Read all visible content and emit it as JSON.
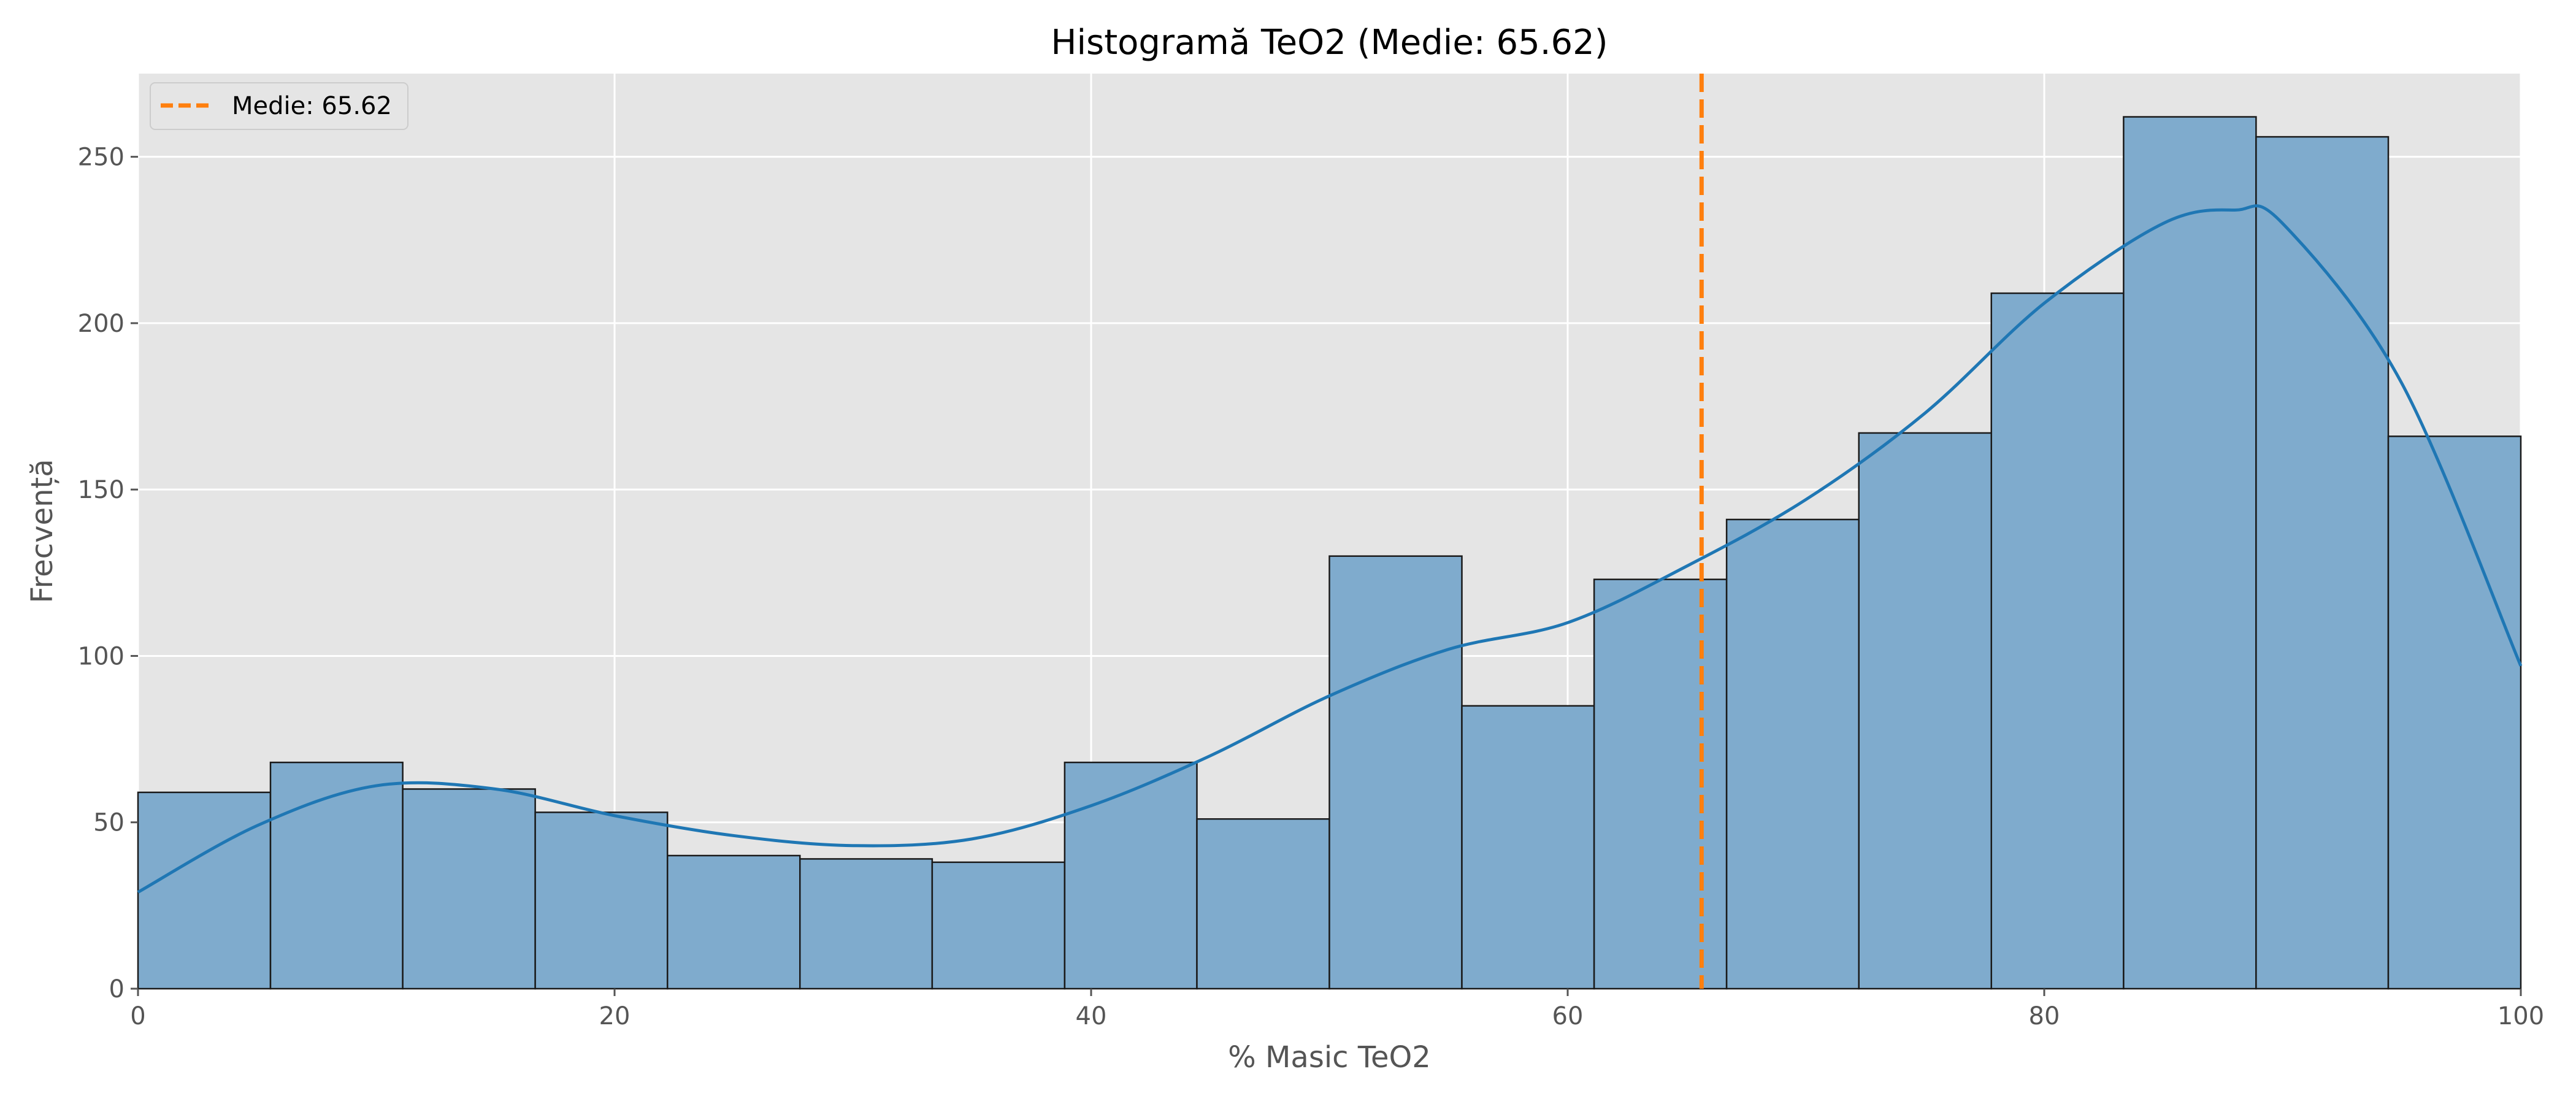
{
  "chart_data": {
    "type": "bar",
    "title": "Histogramă TeO2 (Medie: 65.62)",
    "xlabel": "% Masic TeO2",
    "ylabel": "Frecvență",
    "xlim": [
      0,
      100
    ],
    "ylim": [
      0,
      275
    ],
    "grid": true,
    "legend_position": "top-left",
    "x_ticks": [
      0,
      20,
      40,
      60,
      80,
      100
    ],
    "y_ticks": [
      0,
      50,
      100,
      150,
      200,
      250
    ],
    "bin_edges": [
      0,
      5.56,
      11.11,
      16.67,
      22.22,
      27.78,
      33.33,
      38.89,
      44.44,
      50.0,
      55.56,
      61.11,
      66.67,
      72.22,
      77.78,
      83.33,
      88.89,
      94.44,
      100
    ],
    "values": [
      59,
      68,
      60,
      53,
      40,
      39,
      38,
      68,
      51,
      130,
      85,
      123,
      141,
      167,
      209,
      262,
      256,
      166
    ],
    "kde_curve": {
      "x": [
        0,
        5,
        10,
        15,
        20,
        25,
        30,
        35,
        40,
        45,
        50,
        55,
        60,
        65,
        70,
        75,
        80,
        85,
        88,
        90,
        95,
        100
      ],
      "y": [
        29,
        49,
        61,
        60,
        52,
        46,
        43,
        45,
        55,
        70,
        88,
        102,
        110,
        127,
        147,
        173,
        206,
        230,
        234,
        230,
        182,
        97
      ]
    },
    "mean": {
      "value": 65.62,
      "label": "Medie: 65.62"
    },
    "colors": {
      "background": "#e5e5e5",
      "grid": "#ffffff",
      "bar_fill": "#7fabcd",
      "bar_edge": "#1a1a1a",
      "kde_line": "#1f77b4",
      "mean_line": "#ff7f0e"
    }
  }
}
